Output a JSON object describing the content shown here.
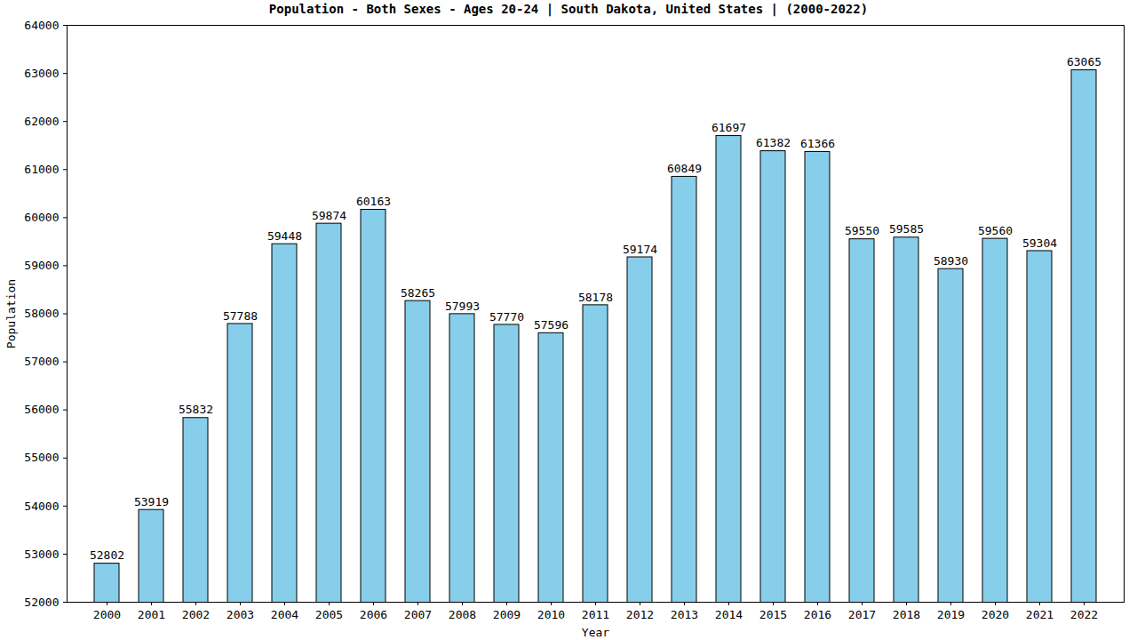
{
  "chart_data": {
    "type": "bar",
    "title": "Population - Both Sexes - Ages 20-24 | South Dakota, United States |  (2000-2022)",
    "x_label": "Year",
    "y_label": "Population",
    "categories": [
      "2000",
      "2001",
      "2002",
      "2003",
      "2004",
      "2005",
      "2006",
      "2007",
      "2008",
      "2009",
      "2010",
      "2011",
      "2012",
      "2013",
      "2014",
      "2015",
      "2016",
      "2017",
      "2018",
      "2019",
      "2020",
      "2021",
      "2022"
    ],
    "values": [
      52802,
      53919,
      55832,
      57788,
      59448,
      59874,
      60163,
      58265,
      57993,
      57770,
      57596,
      58178,
      59174,
      60849,
      61697,
      61382,
      61366,
      59550,
      59585,
      58930,
      59560,
      59304,
      63065
    ],
    "color": "#87ceeb",
    "ylim": [
      52000,
      64000
    ],
    "yticks": [
      52000,
      53000,
      54000,
      55000,
      56000,
      57000,
      58000,
      59000,
      60000,
      61000,
      62000,
      63000,
      64000
    ],
    "grid": false,
    "data_labels": true
  }
}
